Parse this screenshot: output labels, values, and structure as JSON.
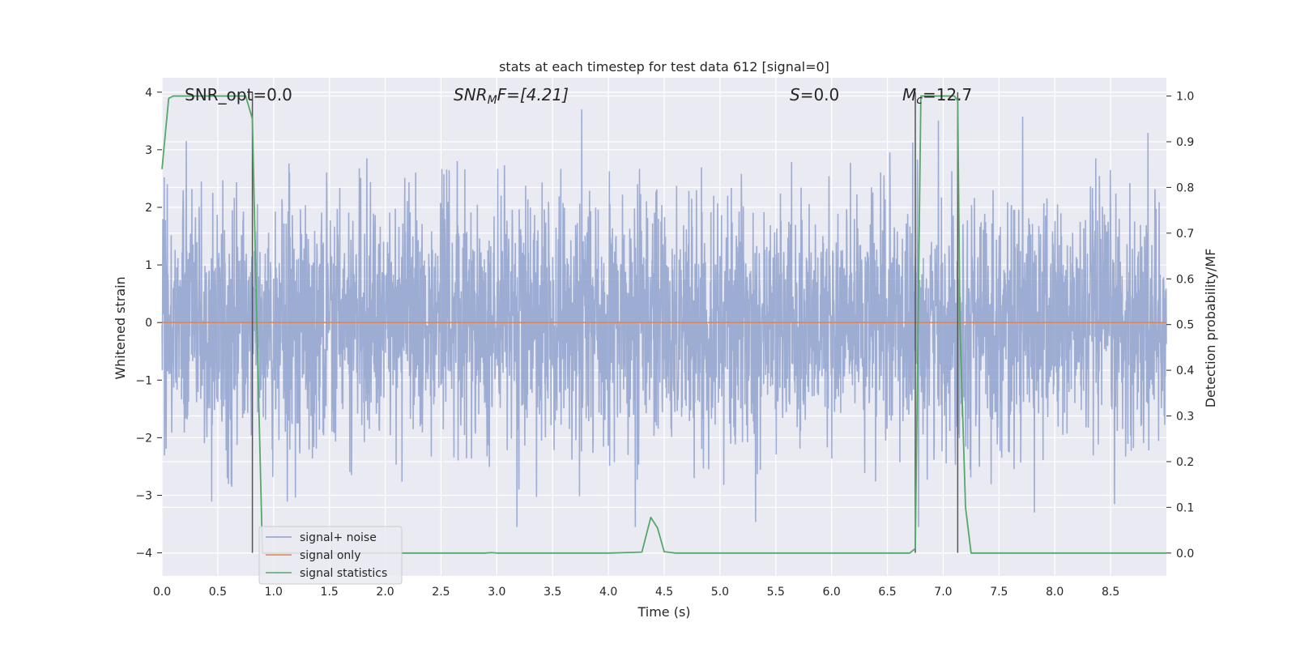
{
  "chart_data": {
    "type": "line",
    "title": "stats at each timestep for test data 612 [signal=0]",
    "xlabel": "Time (s)",
    "ylabel_left": "Whitened strain",
    "ylabel_right": "Detection probability/MF",
    "xlim": [
      0.0,
      9.0
    ],
    "ylim_left": [
      -4.4,
      4.25
    ],
    "ylim_right": [
      -0.05,
      1.04
    ],
    "x_ticks": [
      "0.0",
      "0.5",
      "1.0",
      "1.5",
      "2.0",
      "2.5",
      "3.0",
      "3.5",
      "4.0",
      "4.5",
      "5.0",
      "5.5",
      "6.0",
      "6.5",
      "7.0",
      "7.5",
      "8.0",
      "8.5"
    ],
    "y_left_ticks": [
      "4",
      "3",
      "2",
      "1",
      "0",
      "−1",
      "−2",
      "−3",
      "−4"
    ],
    "y_right_ticks": [
      "1.0",
      "0.9",
      "0.8",
      "0.7",
      "0.6",
      "0.5",
      "0.4",
      "0.3",
      "0.2",
      "0.1",
      "0.0"
    ],
    "grid": true,
    "legend_position": "lower-left",
    "annotations": {
      "snr_opt": "SNR_opt=0.0",
      "snr_mf_main": "SNR",
      "snr_mf_sub": "M",
      "snr_mf_rest": "F=[4.21]",
      "s_italic": "S",
      "s_rest": "=0.0",
      "mc_main": "M",
      "mc_sub": "c",
      "mc_rest": "=12.7"
    },
    "vertical_lines_x": [
      0.81,
      6.75,
      7.13
    ],
    "series": [
      {
        "name": "signal+ noise",
        "axis": "left",
        "color": "#8c9fcc",
        "description_level": "whitened noisy strain, roughly within [-3.5, 3.7]"
      },
      {
        "name": "signal only",
        "axis": "left",
        "color": "#dd8452",
        "x": [
          0.0,
          9.0
        ],
        "y": [
          0.0,
          0.0
        ]
      },
      {
        "name": "signal statistics",
        "axis": "right",
        "color": "#55a868",
        "x": [
          0.0,
          0.06,
          0.1,
          0.2,
          0.4,
          0.6,
          0.75,
          0.81,
          0.85,
          0.9,
          1.0,
          2.0,
          2.9,
          2.95,
          3.0,
          4.0,
          4.3,
          4.38,
          4.44,
          4.5,
          4.6,
          5.0,
          6.0,
          6.7,
          6.75,
          6.8,
          7.0,
          7.1,
          7.13,
          7.15,
          7.2,
          7.25,
          7.5,
          8.0,
          9.0
        ],
        "y": [
          0.84,
          0.995,
          1.0,
          1.0,
          1.0,
          1.0,
          1.0,
          0.95,
          0.5,
          0.0,
          0.0,
          0.0,
          0.0,
          0.001,
          0.0,
          0.0,
          0.002,
          0.078,
          0.055,
          0.003,
          0.0,
          0.0,
          0.0,
          0.0,
          0.01,
          1.0,
          1.0,
          1.0,
          0.99,
          0.5,
          0.1,
          0.0,
          0.0,
          0.0,
          0.0
        ]
      }
    ]
  }
}
